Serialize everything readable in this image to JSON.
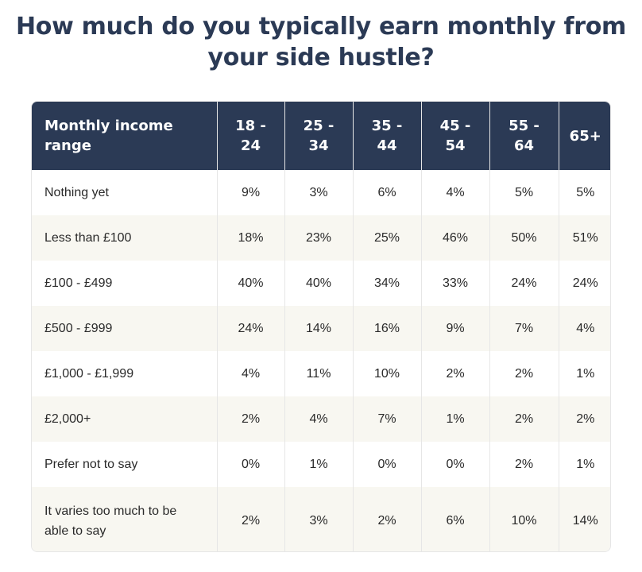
{
  "title_lines": [
    "How much do you typically earn monthly from",
    "your side hustle?"
  ],
  "colors": {
    "header_bg": "#2b3a55",
    "header_text": "#ffffff",
    "title": "#2b3a55",
    "stripe": "#f8f7f1"
  },
  "chart_data": {
    "type": "table",
    "title": "How much do you typically earn monthly from your side hustle?",
    "columns": [
      "Monthly income range",
      "18 - 24",
      "25 - 34",
      "35 - 44",
      "45 - 54",
      "55 - 64",
      "65+"
    ],
    "rows": [
      {
        "label": "Nothing yet",
        "values": [
          "9%",
          "3%",
          "6%",
          "4%",
          "5%",
          "5%"
        ]
      },
      {
        "label": "Less than £100",
        "values": [
          "18%",
          "23%",
          "25%",
          "46%",
          "50%",
          "51%"
        ]
      },
      {
        "label": "£100 - £499",
        "values": [
          "40%",
          "40%",
          "34%",
          "33%",
          "24%",
          "24%"
        ]
      },
      {
        "label": "£500 - £999",
        "values": [
          "24%",
          "14%",
          "16%",
          "9%",
          "7%",
          "4%"
        ]
      },
      {
        "label": "£1,000 - £1,999",
        "values": [
          "4%",
          "11%",
          "10%",
          "2%",
          "2%",
          "1%"
        ]
      },
      {
        "label": "£2,000+",
        "values": [
          "2%",
          "4%",
          "7%",
          "1%",
          "2%",
          "2%"
        ]
      },
      {
        "label": "Prefer not to say",
        "values": [
          "0%",
          "1%",
          "0%",
          "0%",
          "2%",
          "1%"
        ]
      },
      {
        "label": "It varies too much to be able to say",
        "values": [
          "2%",
          "3%",
          "2%",
          "6%",
          "10%",
          "14%"
        ]
      }
    ]
  }
}
